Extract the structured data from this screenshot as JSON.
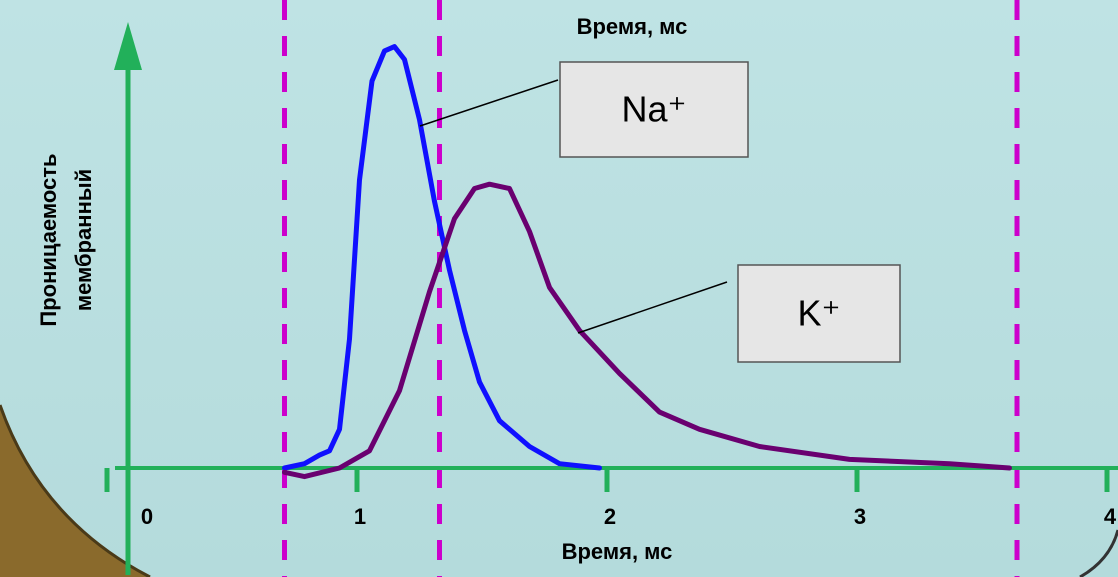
{
  "chart_data": {
    "type": "line",
    "title": "Время, мс",
    "xlabel": "Время, мс",
    "ylabel": [
      "Проницаемость",
      "мембранный"
    ],
    "xlim": [
      0,
      4.04
    ],
    "xticks": [
      0,
      1,
      2,
      3,
      4
    ],
    "ylim": [
      0,
      1
    ],
    "vlines": [
      0.71,
      1.33,
      3.64
    ],
    "vline_color": "#cc00cc",
    "axis_color": "#22b05a",
    "series": [
      {
        "name": "Na⁺",
        "color": "#1010ff",
        "x": [
          0.71,
          0.79,
          0.85,
          0.89,
          0.93,
          0.97,
          1.01,
          1.06,
          1.11,
          1.15,
          1.19,
          1.25,
          1.31,
          1.37,
          1.43,
          1.49,
          1.57,
          1.69,
          1.81,
          1.97
        ],
        "values": [
          0,
          0.01,
          0.03,
          0.04,
          0.09,
          0.3,
          0.67,
          0.9,
          0.97,
          0.98,
          0.95,
          0.81,
          0.62,
          0.46,
          0.32,
          0.2,
          0.11,
          0.05,
          0.01,
          0
        ]
      },
      {
        "name": "K⁺",
        "color": "#6a0070",
        "x": [
          0.71,
          0.79,
          0.93,
          1.05,
          1.17,
          1.29,
          1.39,
          1.47,
          1.53,
          1.61,
          1.69,
          1.77,
          1.89,
          2.05,
          2.21,
          2.37,
          2.61,
          2.97,
          3.37,
          3.61
        ],
        "values": [
          -0.01,
          -0.02,
          0,
          0.04,
          0.18,
          0.41,
          0.58,
          0.65,
          0.66,
          0.65,
          0.55,
          0.42,
          0.32,
          0.22,
          0.13,
          0.09,
          0.05,
          0.02,
          0.01,
          0
        ]
      }
    ]
  }
}
